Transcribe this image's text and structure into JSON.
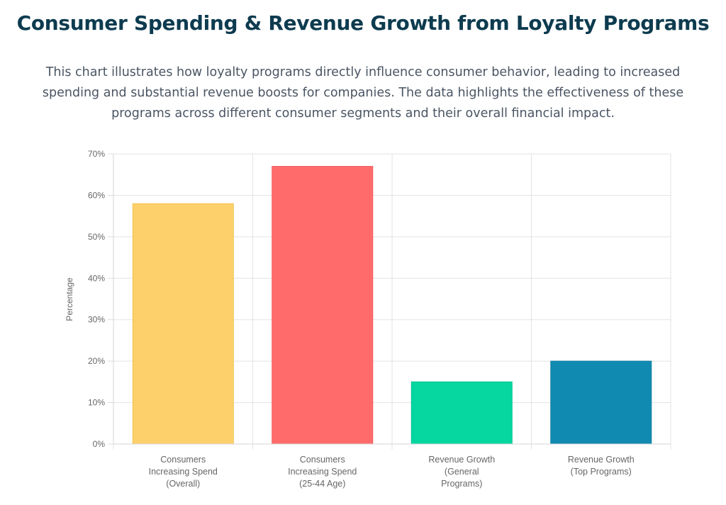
{
  "title": "Consumer Spending & Revenue Growth from Loyalty Programs",
  "description": "This chart illustrates how loyalty programs directly influence consumer behavior, leading to increased spending and substantial revenue boosts for companies. The data highlights the effectiveness of these programs across different consumer segments and their overall financial impact.",
  "chart_data": {
    "type": "bar",
    "categories": [
      [
        "Consumers",
        "Increasing Spend",
        "(Overall)"
      ],
      [
        "Consumers",
        "Increasing Spend",
        "(25-44 Age)"
      ],
      [
        "Revenue Growth",
        "(General",
        "Programs)"
      ],
      [
        "Revenue Growth",
        "(Top Programs)"
      ]
    ],
    "values": [
      58,
      67,
      15,
      20
    ],
    "colors": [
      "#fdd06b",
      "#ff6b6b",
      "#06d6a0",
      "#118ab2"
    ],
    "border_colors": [
      "#f2c14e",
      "#f25c5c",
      "#05c493",
      "#0f7ea3"
    ],
    "ylabel": "Percentage",
    "xlabel": "",
    "ylim": [
      0,
      70
    ],
    "yticks": [
      0,
      10,
      20,
      30,
      40,
      50,
      60,
      70
    ],
    "ytick_labels": [
      "0%",
      "10%",
      "20%",
      "30%",
      "40%",
      "50%",
      "60%",
      "70%"
    ],
    "grid": true
  }
}
